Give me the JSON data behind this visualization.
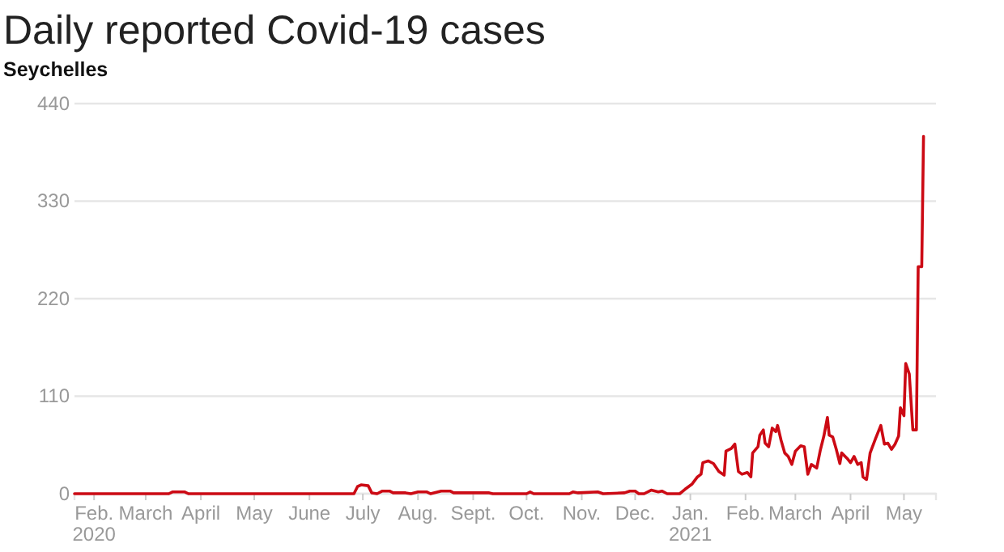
{
  "chart_data": {
    "type": "line",
    "title": "Daily reported Covid-19 cases",
    "subtitle": "Seychelles",
    "x": [
      "2020-01-21",
      "2020-03-14",
      "2020-03-16",
      "2020-03-23",
      "2020-03-25",
      "2020-06-26",
      "2020-06-28",
      "2020-06-30",
      "2020-07-04",
      "2020-07-06",
      "2020-07-09",
      "2020-07-12",
      "2020-07-16",
      "2020-07-18",
      "2020-07-25",
      "2020-07-28",
      "2020-08-01",
      "2020-08-06",
      "2020-08-08",
      "2020-08-14",
      "2020-08-19",
      "2020-08-21",
      "2020-09-10",
      "2020-09-12",
      "2020-10-01",
      "2020-10-03",
      "2020-10-05",
      "2020-10-25",
      "2020-10-27",
      "2020-10-30",
      "2020-11-10",
      "2020-11-13",
      "2020-11-25",
      "2020-11-28",
      "2020-12-01",
      "2020-12-03",
      "2020-12-06",
      "2020-12-10",
      "2020-12-14",
      "2020-12-16",
      "2020-12-19",
      "2020-12-26",
      "2020-12-29",
      "2021-01-02",
      "2021-01-05",
      "2021-01-07",
      "2021-01-08",
      "2021-01-11",
      "2021-01-14",
      "2021-01-17",
      "2021-01-20",
      "2021-01-21",
      "2021-01-24",
      "2021-01-26",
      "2021-01-28",
      "2021-01-30",
      "2021-02-02",
      "2021-02-04",
      "2021-02-05",
      "2021-02-08",
      "2021-02-09",
      "2021-02-11",
      "2021-02-12",
      "2021-02-14",
      "2021-02-16",
      "2021-02-18",
      "2021-02-19",
      "2021-02-21",
      "2021-02-23",
      "2021-02-25",
      "2021-02-27",
      "2021-03-01",
      "2021-03-04",
      "2021-03-06",
      "2021-03-08",
      "2021-03-10",
      "2021-03-13",
      "2021-03-15",
      "2021-03-17",
      "2021-03-19",
      "2021-03-20",
      "2021-03-22",
      "2021-03-24",
      "2021-03-26",
      "2021-03-27",
      "2021-03-30",
      "2021-04-01",
      "2021-04-03",
      "2021-04-05",
      "2021-04-07",
      "2021-04-08",
      "2021-04-10",
      "2021-04-12",
      "2021-04-15",
      "2021-04-17",
      "2021-04-18",
      "2021-04-20",
      "2021-04-22",
      "2021-04-24",
      "2021-04-26",
      "2021-04-28",
      "2021-04-29",
      "2021-05-01",
      "2021-05-02",
      "2021-05-04",
      "2021-05-06",
      "2021-05-08",
      "2021-05-09",
      "2021-05-11",
      "2021-05-12"
    ],
    "series": [
      {
        "color": "#cc0a14",
        "values": [
          0,
          0,
          2,
          2,
          0,
          0,
          8,
          10,
          9,
          1,
          0,
          3,
          3,
          1,
          1,
          0,
          2,
          2,
          0,
          3,
          3,
          1,
          1,
          0,
          0,
          2,
          0,
          0,
          2,
          1,
          2,
          0,
          1,
          3,
          3,
          0,
          0,
          4,
          2,
          3,
          0,
          0,
          5,
          11,
          19,
          22,
          35,
          37,
          34,
          25,
          21,
          48,
          51,
          56,
          25,
          22,
          24,
          19,
          46,
          53,
          66,
          72,
          57,
          53,
          74,
          70,
          77,
          60,
          46,
          42,
          33,
          48,
          54,
          53,
          22,
          33,
          29,
          49,
          65,
          86,
          66,
          64,
          50,
          34,
          46,
          40,
          35,
          42,
          33,
          35,
          19,
          16,
          46,
          62,
          72,
          77,
          56,
          57,
          50,
          56,
          65,
          97,
          88,
          147,
          135,
          72,
          72,
          256,
          256,
          403
        ]
      }
    ],
    "xlim": [
      "2020-01-21",
      "2021-05-19"
    ],
    "xticks": [
      {
        "value": "2020-02-01",
        "label": "Feb.\n2020"
      },
      {
        "value": "2020-03-01",
        "label": "March"
      },
      {
        "value": "2020-04-01",
        "label": "April"
      },
      {
        "value": "2020-05-01",
        "label": "May"
      },
      {
        "value": "2020-06-01",
        "label": "June"
      },
      {
        "value": "2020-07-01",
        "label": "July"
      },
      {
        "value": "2020-08-01",
        "label": "Aug."
      },
      {
        "value": "2020-09-01",
        "label": "Sept."
      },
      {
        "value": "2020-10-01",
        "label": "Oct."
      },
      {
        "value": "2020-11-01",
        "label": "Nov."
      },
      {
        "value": "2020-12-01",
        "label": "Dec."
      },
      {
        "value": "2021-01-01",
        "label": "Jan.\n2021"
      },
      {
        "value": "2021-02-01",
        "label": "Feb."
      },
      {
        "value": "2021-03-01",
        "label": "March"
      },
      {
        "value": "2021-04-01",
        "label": "April"
      },
      {
        "value": "2021-05-01",
        "label": "May"
      }
    ],
    "ylim": [
      0,
      440
    ],
    "yticks": [
      0,
      110,
      220,
      330,
      440
    ],
    "grid": "y"
  }
}
